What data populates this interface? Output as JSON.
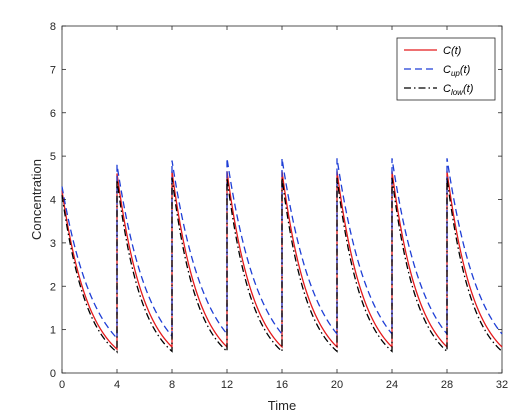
{
  "chart_data": {
    "type": "line",
    "xlabel": "Time",
    "ylabel": "Concentration",
    "xlim": [
      0,
      32
    ],
    "ylim": [
      0,
      8
    ],
    "x_ticks": [
      "0",
      "4",
      "8",
      "12",
      "16",
      "20",
      "24",
      "28",
      "32"
    ],
    "y_ticks": [
      "0",
      "1",
      "2",
      "3",
      "4",
      "5",
      "6",
      "7",
      "8"
    ],
    "grid": false,
    "legend_position": "top-right",
    "dosing_interval": 4,
    "series": [
      {
        "name": "C(t)",
        "legend_main": "C",
        "legend_sub": "",
        "legend_suffix": "(t)",
        "color": "#e41a1c",
        "dash": "solid",
        "start_value": 4.2,
        "peak_values": [
          4.2,
          4.6,
          4.65,
          4.65,
          4.65,
          4.65,
          4.65,
          4.65
        ],
        "trough_values": [
          0.55,
          0.6,
          0.6,
          0.6,
          0.6,
          0.6,
          0.6,
          0.6
        ]
      },
      {
        "name": "C_up(t)",
        "legend_main": "C",
        "legend_sub": "up",
        "legend_suffix": "(t)",
        "color": "#1f3fd6",
        "dash": "dashed",
        "start_value": 4.3,
        "peak_values": [
          4.3,
          4.8,
          4.9,
          4.95,
          4.95,
          4.95,
          4.95,
          4.95
        ],
        "trough_values": [
          0.8,
          0.85,
          0.9,
          0.9,
          0.9,
          0.9,
          0.9,
          0.9
        ]
      },
      {
        "name": "C_low(t)",
        "legend_main": "C",
        "legend_sub": "low",
        "legend_suffix": "(t)",
        "color": "#000000",
        "dash": "dashdot",
        "start_value": 4.1,
        "peak_values": [
          4.1,
          4.45,
          4.5,
          4.5,
          4.5,
          4.5,
          4.5,
          4.5
        ],
        "trough_values": [
          0.48,
          0.5,
          0.5,
          0.5,
          0.5,
          0.5,
          0.5,
          0.5
        ]
      }
    ]
  }
}
